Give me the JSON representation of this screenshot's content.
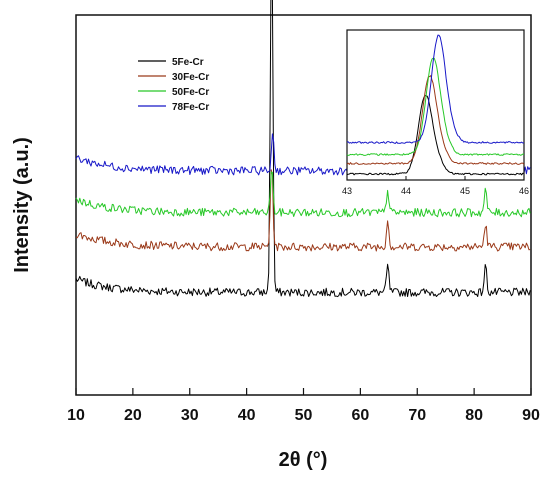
{
  "chart_data": [
    {
      "type": "line",
      "xlabel": "2θ (°)",
      "ylabel": "Intensity (a.u.)",
      "xlim": [
        10,
        90
      ],
      "xticks": [
        "10",
        "20",
        "30",
        "40",
        "50",
        "60",
        "70",
        "80",
        "90"
      ],
      "ylim": [
        0,
        1
      ],
      "legend_position": "top-left",
      "series": [
        {
          "name": "5Fe-Cr",
          "color": "#000000",
          "baseline": 0.27,
          "peaks": [
            [
              44.4,
              0.97
            ],
            [
              64.8,
              0.07
            ],
            [
              82.0,
              0.07
            ]
          ]
        },
        {
          "name": "30Fe-Cr",
          "color": "#9b3a1a",
          "baseline": 0.39,
          "peaks": [
            [
              44.4,
              0.22
            ],
            [
              64.8,
              0.07
            ],
            [
              82.0,
              0.06
            ]
          ]
        },
        {
          "name": "50Fe-Cr",
          "color": "#28c828",
          "baseline": 0.48,
          "peaks": [
            [
              44.4,
              0.12
            ],
            [
              64.8,
              0.06
            ],
            [
              82.0,
              0.06
            ]
          ]
        },
        {
          "name": "78Fe-Cr",
          "color": "#1818c8",
          "baseline": 0.59,
          "peaks": [
            [
              44.6,
              0.1
            ],
            [
              65.0,
              0.06
            ],
            [
              82.1,
              0.09
            ]
          ]
        }
      ]
    },
    {
      "type": "line",
      "xlim": [
        43,
        46
      ],
      "xticks": [
        "43",
        "44",
        "45",
        "46"
      ],
      "ylim": [
        0,
        1
      ],
      "series": [
        {
          "name": "5Fe-Cr",
          "color": "#000000",
          "baseline": 0.04,
          "peak_x": 44.33,
          "peak_y": 0.52
        },
        {
          "name": "30Fe-Cr",
          "color": "#9b3a1a",
          "baseline": 0.11,
          "peak_x": 44.4,
          "peak_y": 0.58
        },
        {
          "name": "50Fe-Cr",
          "color": "#28c828",
          "baseline": 0.17,
          "peak_x": 44.46,
          "peak_y": 0.64
        },
        {
          "name": "78Fe-Cr",
          "color": "#1818c8",
          "baseline": 0.25,
          "peak_x": 44.55,
          "peak_y": 0.71
        }
      ]
    }
  ]
}
